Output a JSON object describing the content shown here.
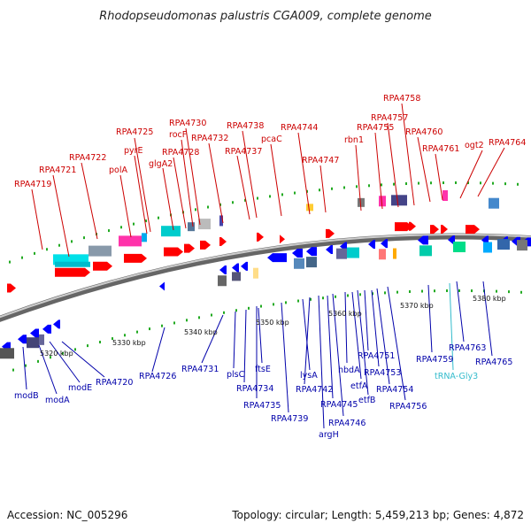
{
  "title": "Rhodopseudomonas palustris CGA009, complete genome",
  "footer": {
    "accession": "Accession: NC_005296",
    "summary": "Topology: circular; Length: 5,459,213 bp; Genes: 4,872"
  },
  "ticks": [
    "5320 kbp",
    "5330 kbp",
    "5340 kbp",
    "5350 kbp",
    "5360 kbp",
    "5370 kbp",
    "5380 kbp"
  ],
  "top_labels": [
    "RPA4719",
    "RPA4721",
    "RPA4722",
    "polA",
    "pyrE",
    "RPA4725",
    "glgA2",
    "RPA4728",
    "rocF",
    "RPA4730",
    "RPA4732",
    "RPA4737",
    "RPA4738",
    "pcaC",
    "RPA4744",
    "RPA4747",
    "rbn1",
    "RPA4755",
    "RPA4757",
    "RPA4758",
    "RPA4760",
    "RPA4761",
    "ogt2",
    "RPA4764"
  ],
  "bottom_labels": [
    "modB",
    "modA",
    "modE",
    "RPA4720",
    "RPA4726",
    "RPA4731",
    "plsC",
    "RPA4734",
    "RPA4735",
    "ftsE",
    "RPA4739",
    "lysA",
    "RPA4742",
    "argH",
    "RPA4745",
    "RPA4746",
    "hbdA",
    "etfA",
    "etfB",
    "RPA4751",
    "RPA4753",
    "RPA4754",
    "RPA4756",
    "RPA4759",
    "tRNA-Gly3",
    "RPA4763",
    "RPA4765"
  ],
  "colors": {
    "forward_gene": "#ff0000",
    "reverse_gene": "#0000ff",
    "backbone": "#888888",
    "trna": "#33bbcc"
  }
}
